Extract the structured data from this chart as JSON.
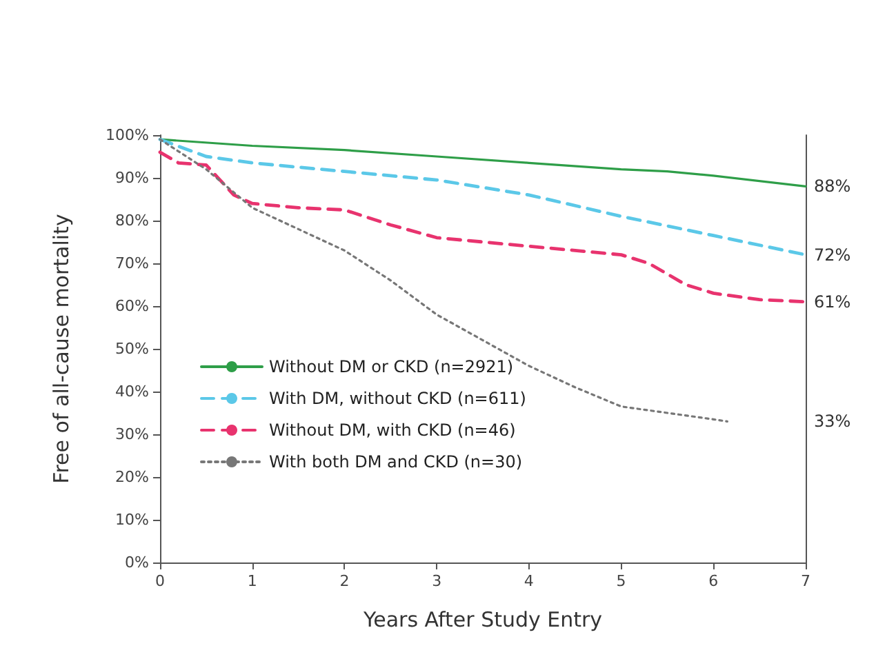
{
  "chart_data": {
    "type": "line",
    "xlabel": "Years After Study Entry",
    "ylabel": "Free of all-cause mortality",
    "xlim": [
      0,
      7
    ],
    "xticks": [
      0,
      1,
      2,
      3,
      4,
      5,
      6,
      7
    ],
    "ylim": [
      0,
      100
    ],
    "yticks": [
      {
        "value": 0,
        "label": "0%"
      },
      {
        "value": 10,
        "label": "10%"
      },
      {
        "value": 20,
        "label": "20%"
      },
      {
        "value": 30,
        "label": "30%"
      },
      {
        "value": 40,
        "label": "40%"
      },
      {
        "value": 50,
        "label": "50%"
      },
      {
        "value": 60,
        "label": "60%"
      },
      {
        "value": 70,
        "label": "70%"
      },
      {
        "value": 80,
        "label": "80%"
      },
      {
        "value": 90,
        "label": "90%"
      },
      {
        "value": 100,
        "label": "100%"
      }
    ],
    "grid": false,
    "legend": "bottom left",
    "marker": "none",
    "series": [
      {
        "name": "Without DM or CKD (n=2921)",
        "color": "#2e9e48",
        "line_style": "solid",
        "x": [
          0,
          1,
          2,
          3,
          4,
          5,
          5.5,
          6,
          7
        ],
        "values": [
          99,
          97.5,
          96.5,
          95,
          93.5,
          92,
          91.5,
          90.5,
          88
        ]
      },
      {
        "name": "With DM, without CKD (n=611)",
        "color": "#5bc8e8",
        "line_style": "dashed",
        "x": [
          0,
          0.5,
          1,
          2,
          3,
          4,
          5,
          6,
          7
        ],
        "values": [
          99,
          95,
          93.5,
          91.5,
          89.5,
          86,
          81,
          76.5,
          72
        ]
      },
      {
        "name": "Without DM, with CKD (n=46)",
        "color": "#e8336e",
        "line_style": "dashed",
        "x": [
          0,
          0.2,
          0.5,
          0.8,
          1,
          1.5,
          2,
          2.5,
          3,
          3.5,
          4,
          5,
          5.3,
          5.7,
          6,
          6.5,
          7
        ],
        "values": [
          96,
          93.5,
          93,
          86,
          84,
          83,
          82.5,
          79,
          76,
          75,
          74,
          72,
          70,
          65,
          63,
          61.5,
          61
        ]
      },
      {
        "name": "With both DM and CKD (n=30)",
        "color": "#777777",
        "line_style": "dotted",
        "x": [
          0,
          0.5,
          1,
          1.5,
          2,
          2.5,
          3,
          3.5,
          4,
          4.5,
          5,
          5.5,
          6,
          6.15
        ],
        "values": [
          99,
          92,
          83,
          78,
          73,
          66,
          58,
          52,
          46,
          41,
          36.5,
          35,
          33.5,
          33
        ]
      }
    ],
    "annotations": [
      "88%",
      "72%",
      "61%",
      "33%"
    ]
  }
}
